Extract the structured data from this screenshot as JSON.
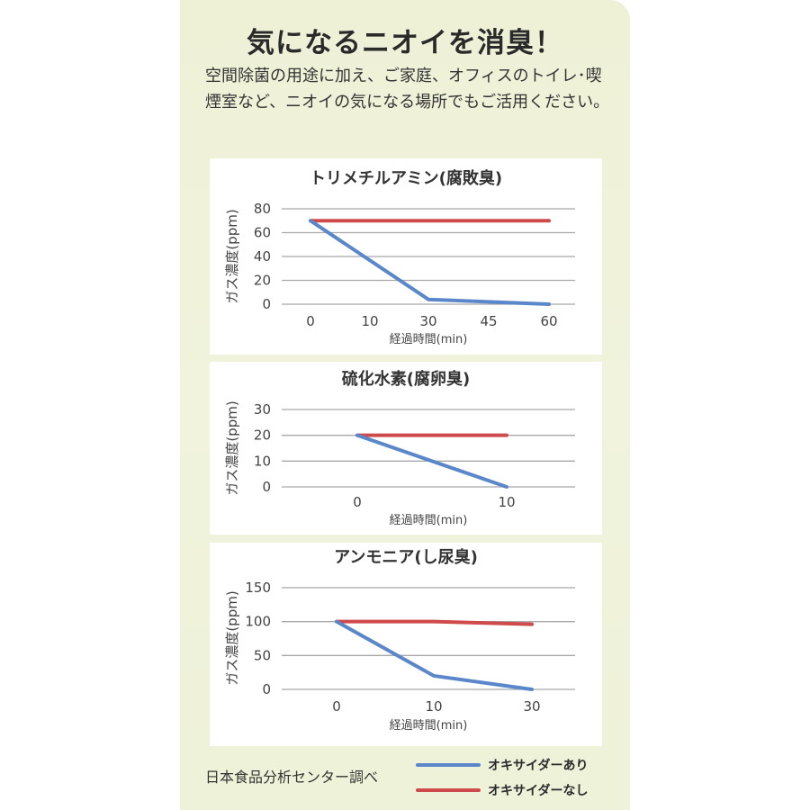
{
  "title": "気になるニオイを消臭！",
  "description": "空間除菌の用途に加え、ご家庭、オフィスのトイレ･喫煙室など、ニオイの気になる場所でもご活用ください。",
  "source": "日本食品分析センター調べ",
  "colors": {
    "with": "#5a87c9",
    "without": "#cf4b4b",
    "grid": "#a8a8a8"
  },
  "legend": [
    {
      "label": "オキサイダーあり",
      "color": "#5a87c9"
    },
    {
      "label": "オキサイダーなし",
      "color": "#cf4b4b"
    }
  ],
  "chart_data": [
    {
      "type": "line",
      "title": "トリメチルアミン(腐敗臭)",
      "xlabel": "経過時間(min)",
      "ylabel": "ガス濃度(ppm)",
      "x": [
        0,
        10,
        30,
        45,
        60
      ],
      "ylim": [
        0,
        80
      ],
      "yticks": [
        0,
        20,
        40,
        60,
        80
      ],
      "series": [
        {
          "name": "オキサイダーあり",
          "points": [
            [
              0,
              70
            ],
            [
              30,
              4
            ],
            [
              60,
              0
            ]
          ]
        },
        {
          "name": "オキサイダーなし",
          "points": [
            [
              0,
              70
            ],
            [
              60,
              70
            ]
          ]
        }
      ]
    },
    {
      "type": "line",
      "title": "硫化水素(腐卵臭)",
      "xlabel": "経過時間(min)",
      "ylabel": "ガス濃度(ppm)",
      "x": [
        0,
        10
      ],
      "ylim": [
        0,
        30
      ],
      "yticks": [
        0,
        10,
        20,
        30
      ],
      "series": [
        {
          "name": "オキサイダーあり",
          "points": [
            [
              0,
              20
            ],
            [
              10,
              0
            ]
          ]
        },
        {
          "name": "オキサイダーなし",
          "points": [
            [
              0,
              20
            ],
            [
              10,
              20
            ]
          ]
        }
      ]
    },
    {
      "type": "line",
      "title": "アンモニア(し尿臭)",
      "xlabel": "経過時間(min)",
      "ylabel": "ガス濃度(ppm)",
      "x": [
        0,
        10,
        30
      ],
      "ylim": [
        0,
        150
      ],
      "yticks": [
        0,
        50,
        100,
        150
      ],
      "series": [
        {
          "name": "オキサイダーあり",
          "points": [
            [
              0,
              100
            ],
            [
              10,
              20
            ],
            [
              30,
              0
            ]
          ]
        },
        {
          "name": "オキサイダーなし",
          "points": [
            [
              0,
              100
            ],
            [
              10,
              100
            ],
            [
              30,
              96
            ]
          ]
        }
      ]
    }
  ]
}
